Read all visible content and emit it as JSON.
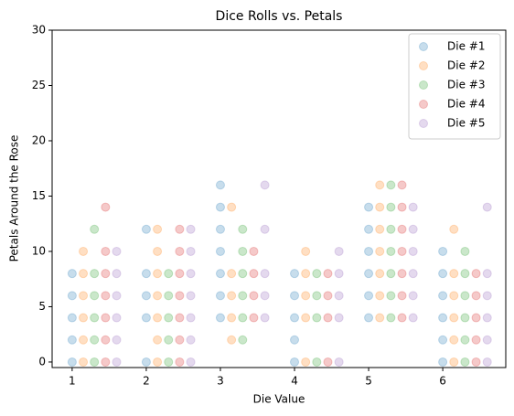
{
  "chart_data": {
    "type": "scatter",
    "title": "Dice Rolls vs. Petals",
    "x_label": "Die Value",
    "y_label": "Petals Around the Rose",
    "xlim": [
      0.73,
      6.85
    ],
    "xticks": [
      1,
      2,
      3,
      4,
      5,
      6
    ],
    "ylim": [
      -0.5,
      30
    ],
    "yticks": [
      0,
      5,
      10,
      15,
      20,
      25,
      30
    ],
    "grid": false,
    "legend": "upper right",
    "series": [
      {
        "name": "Die #1",
        "color": "#1f77b4",
        "x": [
          1,
          1,
          1,
          1,
          1,
          2,
          2,
          2,
          2,
          2,
          3,
          3,
          3,
          3,
          3,
          3,
          3,
          4,
          4,
          4,
          4,
          4,
          5,
          5,
          5,
          5,
          5,
          5,
          6,
          6,
          6,
          6,
          6,
          6
        ],
        "values": [
          0,
          2,
          4,
          6,
          8,
          0,
          4,
          6,
          8,
          12,
          4,
          6,
          8,
          10,
          12,
          14,
          16,
          0,
          2,
          4,
          6,
          8,
          4,
          6,
          8,
          10,
          12,
          14,
          0,
          2,
          4,
          6,
          8,
          10
        ]
      },
      {
        "name": "Die #2",
        "color": "#ff7f0e",
        "x": [
          1.15,
          1.15,
          1.15,
          1.15,
          1.15,
          1.15,
          2.15,
          2.15,
          2.15,
          2.15,
          2.15,
          2.15,
          2.15,
          3.15,
          3.15,
          3.15,
          3.15,
          3.15,
          4.15,
          4.15,
          4.15,
          4.15,
          4.15,
          5.15,
          5.15,
          5.15,
          5.15,
          5.15,
          5.15,
          5.15,
          6.15,
          6.15,
          6.15,
          6.15,
          6.15,
          6.15
        ],
        "values": [
          0,
          2,
          4,
          6,
          8,
          10,
          0,
          2,
          4,
          6,
          8,
          10,
          12,
          2,
          4,
          6,
          8,
          14,
          0,
          4,
          6,
          8,
          10,
          4,
          6,
          8,
          10,
          12,
          14,
          16,
          0,
          2,
          4,
          6,
          8,
          12
        ]
      },
      {
        "name": "Die #3",
        "color": "#2ca02c",
        "x": [
          1.3,
          1.3,
          1.3,
          1.3,
          1.3,
          1.3,
          2.3,
          2.3,
          2.3,
          2.3,
          2.3,
          3.3,
          3.3,
          3.3,
          3.3,
          3.3,
          3.3,
          4.3,
          4.3,
          4.3,
          4.3,
          5.3,
          5.3,
          5.3,
          5.3,
          5.3,
          5.3,
          5.3,
          6.3,
          6.3,
          6.3,
          6.3,
          6.3,
          6.3
        ],
        "values": [
          0,
          2,
          4,
          6,
          8,
          12,
          0,
          2,
          4,
          6,
          8,
          2,
          4,
          6,
          8,
          10,
          12,
          0,
          4,
          6,
          8,
          4,
          6,
          8,
          10,
          12,
          14,
          16,
          0,
          2,
          4,
          6,
          8,
          10
        ]
      },
      {
        "name": "Die #4",
        "color": "#d62728",
        "x": [
          1.45,
          1.45,
          1.45,
          1.45,
          1.45,
          1.45,
          1.45,
          2.45,
          2.45,
          2.45,
          2.45,
          2.45,
          2.45,
          2.45,
          3.45,
          3.45,
          3.45,
          3.45,
          4.45,
          4.45,
          4.45,
          4.45,
          5.45,
          5.45,
          5.45,
          5.45,
          5.45,
          5.45,
          5.45,
          6.45,
          6.45,
          6.45,
          6.45,
          6.45
        ],
        "values": [
          0,
          2,
          4,
          6,
          8,
          10,
          14,
          0,
          2,
          4,
          6,
          8,
          10,
          12,
          4,
          6,
          8,
          10,
          0,
          4,
          6,
          8,
          4,
          6,
          8,
          10,
          12,
          14,
          16,
          0,
          2,
          4,
          6,
          8
        ]
      },
      {
        "name": "Die #5",
        "color": "#9467bd",
        "x": [
          1.6,
          1.6,
          1.6,
          1.6,
          1.6,
          1.6,
          2.6,
          2.6,
          2.6,
          2.6,
          2.6,
          2.6,
          2.6,
          3.6,
          3.6,
          3.6,
          3.6,
          3.6,
          4.6,
          4.6,
          4.6,
          4.6,
          4.6,
          5.6,
          5.6,
          5.6,
          5.6,
          5.6,
          5.6,
          6.6,
          6.6,
          6.6,
          6.6,
          6.6,
          6.6
        ],
        "values": [
          0,
          2,
          4,
          6,
          8,
          10,
          0,
          2,
          4,
          6,
          8,
          10,
          12,
          4,
          6,
          8,
          12,
          16,
          0,
          4,
          6,
          8,
          10,
          4,
          6,
          8,
          10,
          12,
          14,
          0,
          2,
          4,
          6,
          8,
          14
        ]
      }
    ]
  }
}
